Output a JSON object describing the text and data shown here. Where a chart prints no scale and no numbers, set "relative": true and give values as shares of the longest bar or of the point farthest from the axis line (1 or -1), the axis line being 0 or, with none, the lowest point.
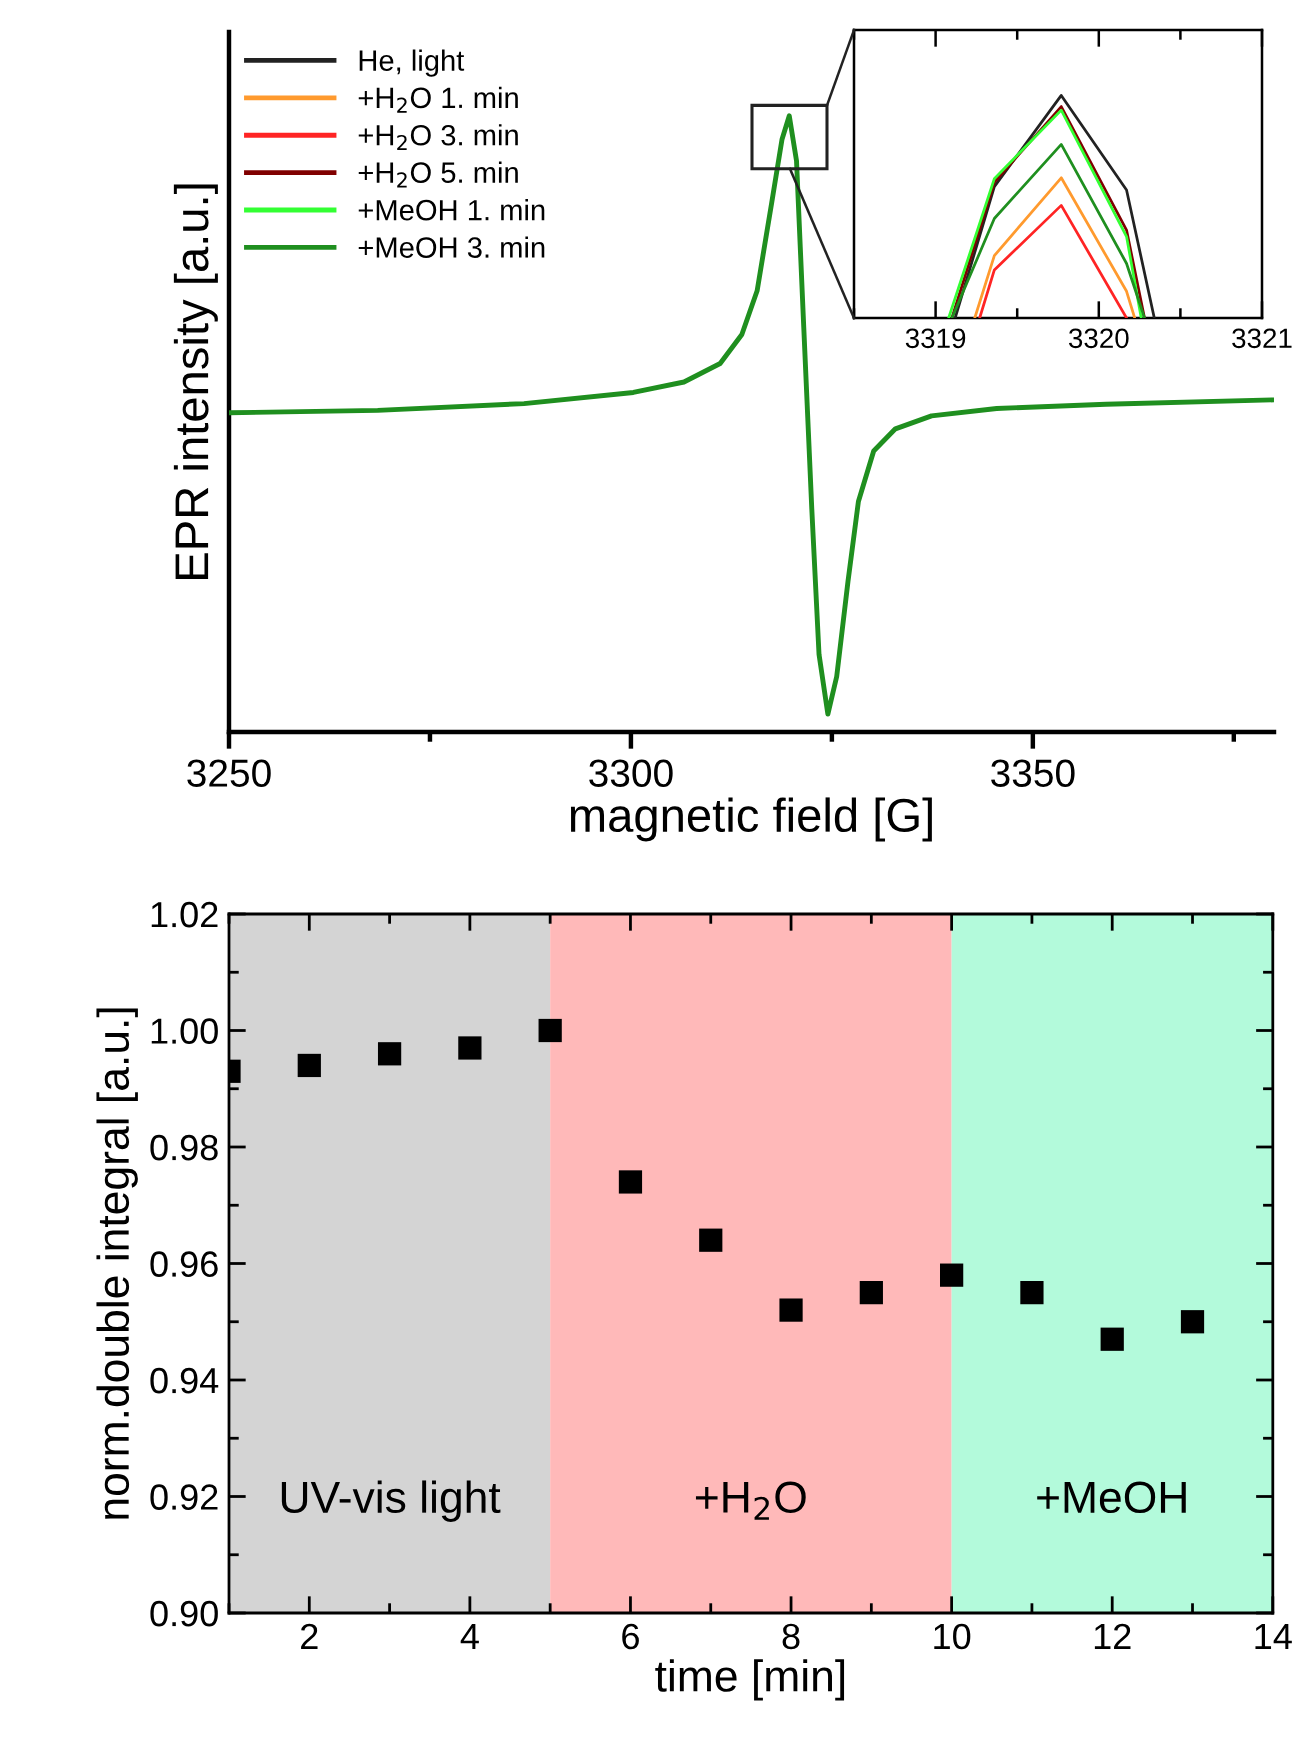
{
  "chart_data": [
    {
      "type": "line",
      "relative": true,
      "tick_labels": "x",
      "xlabel": "magnetic field [G]",
      "ylabel": "EPR intensity [a.u.]",
      "legend": "top left",
      "xlim": [
        3250,
        3380
      ],
      "xticks": [
        3250,
        {
          "value": 3275,
          "label": null
        },
        3300,
        {
          "value": 3325,
          "label": null
        },
        3350,
        {
          "value": 3375,
          "label": null
        }
      ],
      "x": [
        3250,
        3268.5,
        3286.7,
        3300.3,
        3306.6,
        3311.1,
        3313.8,
        3315.7,
        3317.5,
        3318.8,
        3319.7,
        3320.6,
        3321.5,
        3322.5,
        3323.4,
        3324.5,
        3325.6,
        3327.0,
        3328.3,
        3330.2,
        3332.9,
        3337.4,
        3345.5,
        3359.1,
        3380
      ],
      "series": [
        {
          "name": "He, light",
          "color": "#222222",
          "values": [
            null,
            null,
            null,
            null,
            null,
            null,
            null,
            null,
            null,
            null,
            null,
            null,
            null,
            null,
            null,
            null,
            null,
            null,
            null,
            null,
            null,
            null,
            null,
            null,
            null
          ]
        },
        {
          "name": "+H$_{2}$O 1. min",
          "color": "#ff9a2e",
          "values": [
            null,
            null,
            null,
            null,
            null,
            null,
            null,
            null,
            null,
            null,
            null,
            null,
            null,
            null,
            null,
            null,
            null,
            null,
            null,
            null,
            null,
            null,
            null,
            null,
            null
          ]
        },
        {
          "name": "+H$_{2}$O 3. min",
          "color": "#ff2424",
          "values": [
            null,
            null,
            null,
            null,
            null,
            null,
            null,
            null,
            null,
            null,
            null,
            null,
            null,
            null,
            null,
            null,
            null,
            null,
            null,
            null,
            null,
            null,
            null,
            null,
            null
          ]
        },
        {
          "name": "+H$_{2}$O 5. min",
          "color": "#800000",
          "values": [
            null,
            null,
            null,
            null,
            null,
            null,
            null,
            null,
            null,
            null,
            null,
            null,
            null,
            null,
            null,
            null,
            null,
            null,
            null,
            null,
            null,
            null,
            null,
            null,
            null
          ]
        },
        {
          "name": "+MeOH 1. min",
          "color": "#33ff33",
          "values": [
            null,
            null,
            null,
            null,
            null,
            null,
            null,
            null,
            null,
            null,
            null,
            null,
            null,
            null,
            null,
            null,
            null,
            null,
            null,
            null,
            null,
            null,
            null,
            null,
            null
          ]
        },
        {
          "name": "+MeOH 3. min",
          "color": "#1f8f1f",
          "values": [
            0.518,
            0.522,
            0.533,
            0.551,
            0.568,
            0.598,
            0.645,
            0.716,
            0.858,
            0.962,
            1.0,
            0.927,
            0.657,
            0.362,
            0.126,
            0.029,
            0.09,
            0.244,
            0.374,
            0.456,
            0.492,
            0.513,
            0.525,
            0.532,
            0.539
          ]
        }
      ]
    },
    {
      "type": "line",
      "relative": true,
      "tick_labels": "x",
      "xlim": [
        3318.5,
        3321
      ],
      "xticks": [
        {
          "value": 3318.5,
          "label": null
        },
        3319,
        {
          "value": 3319.5,
          "label": null
        },
        3320,
        {
          "value": 3320.5,
          "label": null
        },
        3321
      ],
      "series": [
        {
          "color": "#222222",
          "x": [
            3319.12,
            3319.36,
            3319.77,
            3320.17,
            3320.34
          ],
          "values": [
            0,
            0.59,
            1.0,
            0.575,
            0
          ]
        },
        {
          "color": "#ff9a2e",
          "x": [
            3319.24,
            3319.36,
            3319.77,
            3320.17,
            3320.22
          ],
          "values": [
            0,
            0.28,
            0.63,
            0.12,
            0
          ]
        },
        {
          "color": "#ff2424",
          "x": [
            3319.27,
            3319.36,
            3319.77,
            3320.17
          ],
          "values": [
            0,
            0.216,
            0.506,
            0
          ]
        },
        {
          "color": "#800000",
          "x": [
            3319.1,
            3319.36,
            3319.77,
            3320.17,
            3320.28
          ],
          "values": [
            0,
            0.61,
            0.95,
            0.395,
            0
          ]
        },
        {
          "color": "#33ff33",
          "x": [
            3319.08,
            3319.36,
            3319.77,
            3320.17,
            3320.26
          ],
          "values": [
            0,
            0.626,
            0.934,
            0.366,
            0
          ]
        },
        {
          "color": "#1f8f1f",
          "x": [
            3319.1,
            3319.36,
            3319.77,
            3320.17,
            3320.28
          ],
          "values": [
            0,
            0.447,
            0.78,
            0.245,
            0
          ]
        }
      ]
    },
    {
      "type": "scatter",
      "marker": "square",
      "xlabel": "time [min]",
      "ylabel": "norm.double integral [a.u.]",
      "xlim": [
        1,
        14
      ],
      "xticks": [
        {
          "value": 1,
          "label": null
        },
        2,
        {
          "value": 3,
          "label": null
        },
        4,
        {
          "value": 5,
          "label": null
        },
        6,
        {
          "value": 7,
          "label": null
        },
        8,
        {
          "value": 9,
          "label": null
        },
        10,
        {
          "value": 11,
          "label": null
        },
        12,
        {
          "value": 13,
          "label": null
        },
        14
      ],
      "ylim": [
        0.9,
        1.02
      ],
      "yticks": [
        {
          "value": 0.9,
          "label": "0.90"
        },
        {
          "value": 0.91,
          "label": null
        },
        {
          "value": 0.92,
          "label": "0.92"
        },
        {
          "value": 0.93,
          "label": null
        },
        {
          "value": 0.94,
          "label": "0.94"
        },
        {
          "value": 0.95,
          "label": null
        },
        {
          "value": 0.96,
          "label": "0.96"
        },
        {
          "value": 0.97,
          "label": null
        },
        {
          "value": 0.98,
          "label": "0.98"
        },
        {
          "value": 0.99,
          "label": null
        },
        {
          "value": 1.0,
          "label": "1.00"
        },
        {
          "value": 1.01,
          "label": null
        },
        {
          "value": 1.02,
          "label": "1.02"
        }
      ],
      "bands": [
        {
          "axis": "x",
          "from": 1,
          "to": 5,
          "label": "UV-vis light",
          "color": "#d4d4d4"
        },
        {
          "axis": "x",
          "from": 5,
          "to": 10,
          "label": "+H$_{2}$O",
          "color": "#ffb9b9"
        },
        {
          "axis": "x",
          "from": 10,
          "to": 14,
          "label": "+MeOH",
          "color": "#b3fadb"
        }
      ],
      "series": [
        {
          "color": "#000000",
          "x": [
            1,
            2,
            3,
            4,
            5,
            6,
            7,
            8,
            9,
            10,
            11,
            12,
            13
          ],
          "values": [
            0.993,
            0.994,
            0.996,
            0.997,
            1.0,
            0.974,
            0.964,
            0.952,
            0.955,
            0.958,
            0.955,
            0.947,
            0.95
          ]
        }
      ]
    }
  ]
}
